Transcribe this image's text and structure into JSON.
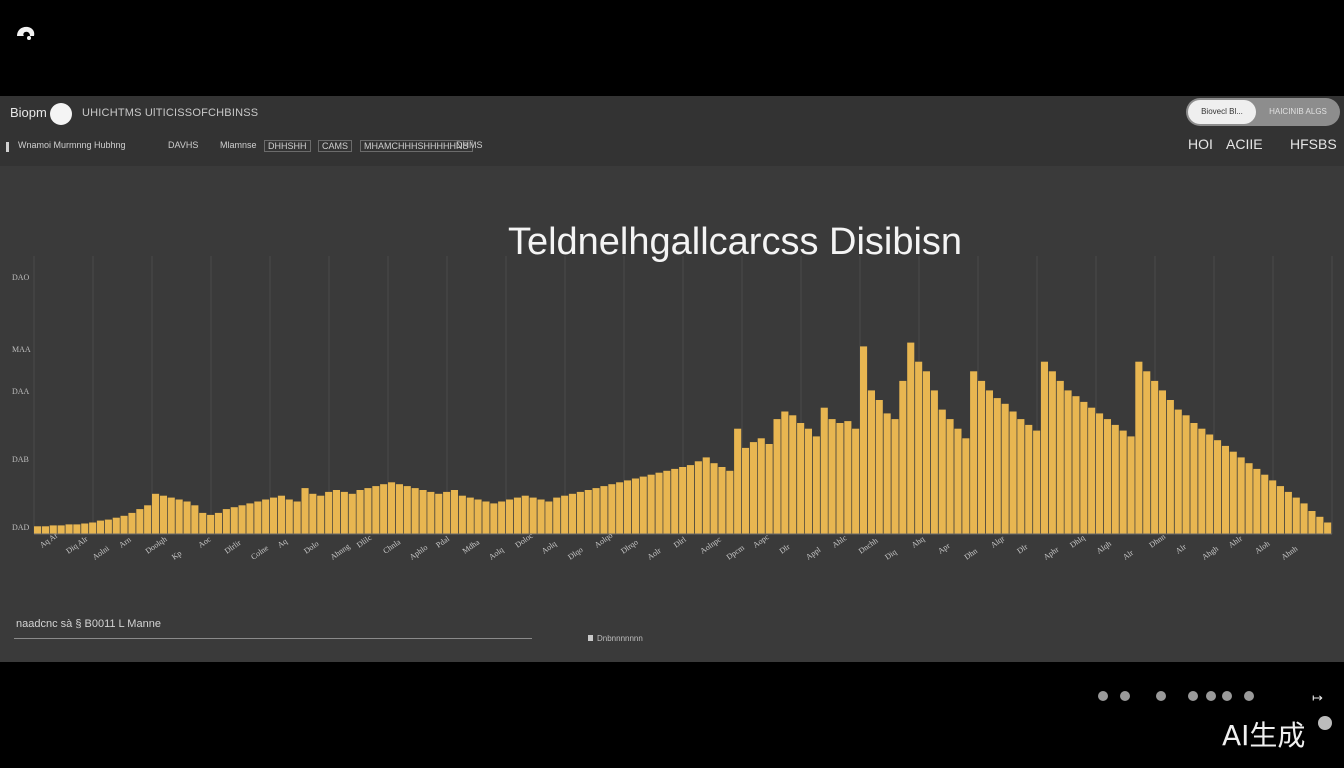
{
  "header": {
    "brand": "Biopm",
    "breadcrumb": "UHICHTMS UlTICISSOFCHBINSS",
    "toggle_on": "Biovecl  Bl...",
    "toggle_off": "HAICINIB  ALGS",
    "nav": [
      "Wnamoi  Murmnng  Hubhng",
      "DAVHS",
      "Mlamnse",
      "DHHSHH",
      "CAMS",
      "MHAMCHHHSHHHHHNS",
      "DHMS"
    ],
    "right_tabs": [
      "HOI",
      "ACIIE",
      "HFSBS"
    ]
  },
  "chart_data": {
    "type": "bar",
    "title": "Teldnelhgallcarcss Disibisn",
    "xlabel": "",
    "ylabel": "",
    "ytick_labels": [
      "DAO",
      "MAA",
      "DAA",
      "DAB",
      "DAD"
    ],
    "ylim": [
      0,
      280
    ],
    "grid": true,
    "color": "#E8B651",
    "values": [
      8,
      8,
      9,
      9,
      10,
      10,
      11,
      12,
      14,
      15,
      17,
      19,
      22,
      26,
      30,
      42,
      40,
      38,
      36,
      34,
      30,
      22,
      20,
      22,
      26,
      28,
      30,
      32,
      34,
      36,
      38,
      40,
      36,
      34,
      48,
      42,
      40,
      44,
      46,
      44,
      42,
      46,
      48,
      50,
      52,
      54,
      52,
      50,
      48,
      46,
      44,
      42,
      44,
      46,
      40,
      38,
      36,
      34,
      32,
      34,
      36,
      38,
      40,
      38,
      36,
      34,
      38,
      40,
      42,
      44,
      46,
      48,
      50,
      52,
      54,
      56,
      58,
      60,
      62,
      64,
      66,
      68,
      70,
      72,
      76,
      80,
      74,
      70,
      66,
      110,
      90,
      96,
      100,
      94,
      120,
      128,
      124,
      116,
      110,
      102,
      132,
      120,
      116,
      118,
      110,
      196,
      150,
      140,
      126,
      120,
      160,
      200,
      180,
      170,
      150,
      130,
      120,
      110,
      100,
      170,
      160,
      150,
      142,
      136,
      128,
      120,
      114,
      108,
      180,
      170,
      160,
      150,
      144,
      138,
      132,
      126,
      120,
      114,
      108,
      102,
      180,
      170,
      160,
      150,
      140,
      130,
      124,
      116,
      110,
      104,
      98,
      92,
      86,
      80,
      74,
      68,
      62,
      56,
      50,
      44,
      38,
      32,
      24,
      18,
      12
    ],
    "x_tick_labels": [
      "Aq Ar",
      "Diq Alr",
      "Aolni",
      "Arn",
      "Doolqh",
      "Kp",
      "Aoc",
      "Dlrlir",
      "Colne",
      "Aq",
      "Dolo",
      "Ahnng",
      "Dlilc",
      "Chnla",
      "Aphlo",
      "Pdal",
      "Mdha",
      "Aolq",
      "Doloc",
      "Aolq",
      "Dlqo",
      "Aolqo",
      "Dlrqo",
      "Aolr",
      "Dlrl",
      "Aolnpc",
      "Dpcm",
      "Aopc",
      "Dlr",
      "Appl",
      "Ahlc",
      "Dnchh",
      "Diq",
      "Ahq",
      "Apr",
      "Dhn",
      "Alqr",
      "Dlr",
      "Aphr",
      "Dhlq",
      "Alqh",
      "Alr",
      "Dhnn",
      "Alr",
      "Ahgh",
      "Ahlr",
      "Aloh",
      "Ahnh"
    ]
  },
  "footer": {
    "info": "naadcnc sà  §   B0011 L  Manne",
    "legend": "Dnbnnnnnnn"
  },
  "watermark": "AI生成"
}
